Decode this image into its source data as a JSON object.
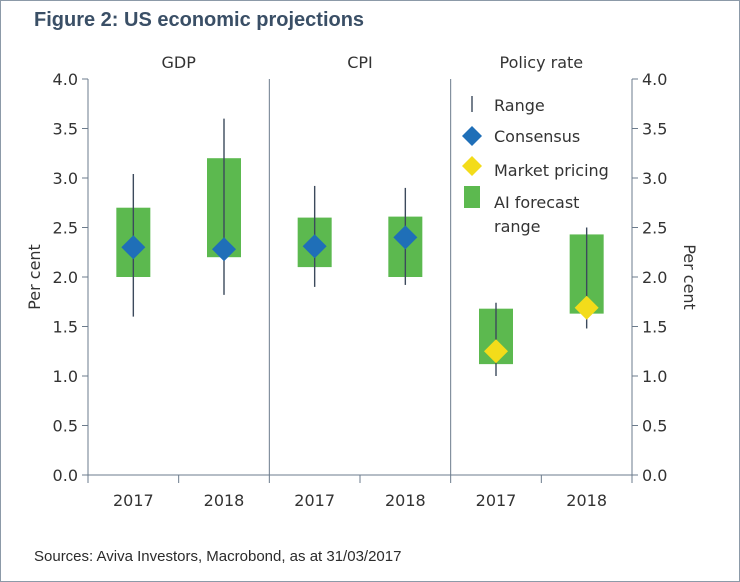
{
  "figure": {
    "title": "Figure 2: US economic projections",
    "source": "Sources: Aviva Investors, Macrobond, as at 31/03/2017"
  },
  "chart_data": {
    "type": "range-bar",
    "panels": [
      "GDP",
      "CPI",
      "Policy rate"
    ],
    "categories": [
      "2017",
      "2018"
    ],
    "ylabel_left": "Per cent",
    "ylabel_right": "Per cent",
    "ylim": [
      0.0,
      4.0
    ],
    "yticks": [
      "0.0",
      "0.5",
      "1.0",
      "1.5",
      "2.0",
      "2.5",
      "3.0",
      "3.5",
      "4.0"
    ],
    "legend_position": "top-right",
    "legend": {
      "range": "Range",
      "consensus": "Consensus",
      "market": "Market pricing",
      "ai_line1": "AI forecast",
      "ai_line2": "range"
    },
    "colors": {
      "range": "#3c4a5c",
      "consensus": "#1f6fb8",
      "market": "#f3dc1a",
      "ai": "#5cb94f",
      "axis": "#6b7b8c"
    },
    "groups": [
      {
        "panel": "GDP",
        "year": "2017",
        "range": [
          1.6,
          3.04
        ],
        "ai": [
          2.0,
          2.7
        ],
        "consensus": 2.3
      },
      {
        "panel": "GDP",
        "year": "2018",
        "range": [
          1.82,
          3.6
        ],
        "ai": [
          2.2,
          3.2
        ],
        "consensus": 2.28
      },
      {
        "panel": "CPI",
        "year": "2017",
        "range": [
          1.9,
          2.92
        ],
        "ai": [
          2.1,
          2.6
        ],
        "consensus": 2.31
      },
      {
        "panel": "CPI",
        "year": "2018",
        "range": [
          1.92,
          2.9
        ],
        "ai": [
          2.0,
          2.61
        ],
        "consensus": 2.4
      },
      {
        "panel": "Policy rate",
        "year": "2017",
        "range": [
          1.0,
          1.74
        ],
        "ai": [
          1.12,
          1.68
        ],
        "market": 1.25
      },
      {
        "panel": "Policy rate",
        "year": "2018",
        "range": [
          1.48,
          2.5
        ],
        "ai": [
          1.63,
          2.43
        ],
        "market": 1.69
      }
    ]
  }
}
